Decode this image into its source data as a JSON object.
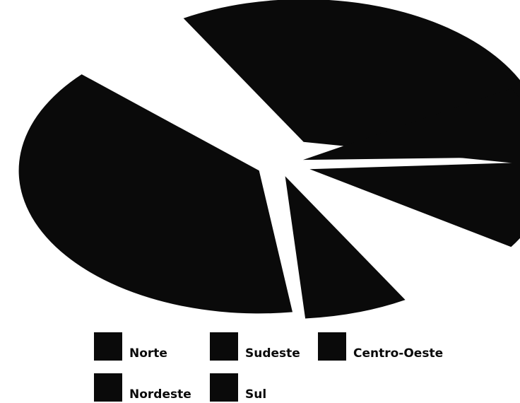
{
  "chart_data": {
    "type": "pie",
    "title": "",
    "slices": [
      {
        "label": "Norte",
        "value": 7,
        "color": "#0a0a0a"
      },
      {
        "label": "Sudeste",
        "value": 39,
        "color": "#0a0a0a"
      },
      {
        "label": "Centro-Oeste",
        "value": 36,
        "color": "#0a0a0a"
      },
      {
        "label": "Nordeste",
        "value": 8,
        "color": "#0a0a0a"
      },
      {
        "label": "Sul",
        "value": 10,
        "color": "#0a0a0a"
      }
    ],
    "legend": [
      "Norte",
      "Sudeste",
      "Centro-Oeste",
      "Nordeste",
      "Sul"
    ],
    "legend_position": "bottom"
  }
}
